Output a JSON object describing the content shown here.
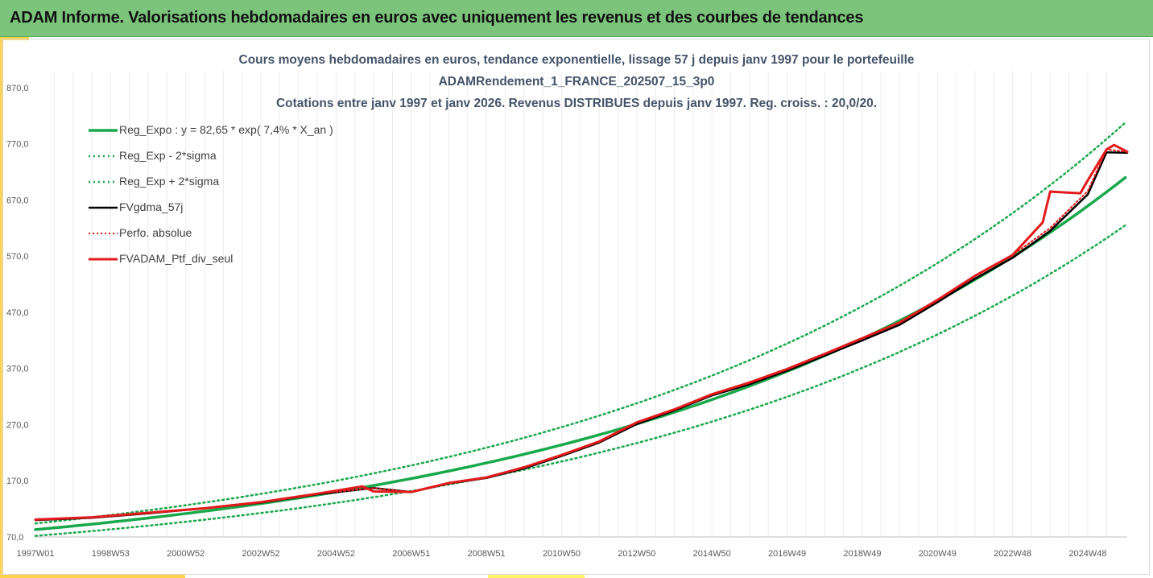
{
  "banner": {
    "title": "ADAM Informe. Valorisations hebdomadaires en euros avec uniquement les revenus et des courbes de tendances"
  },
  "colors": {
    "banner_bg": "#7cc47c",
    "accent": "#ffd24a",
    "reg_expo": "#19a84b",
    "sigma": "#19a84b",
    "fvgdma": "#000000",
    "perfo": "#e31a1c",
    "fvadam": "#e31a1c",
    "title_text": "#44546a"
  },
  "chart_data": {
    "type": "line",
    "title_lines": [
      "Cours moyens hebdomadaires  en euros, tendance exponentielle, lissage 57 j depuis janv 1997 pour le portefeuille",
      "ADAMRendement_1_FRANCE_202507_15_3p0",
      "Cotations entre janv 1997 et janv 2026. Revenus DISTRIBUES depuis janv 1997. Reg. croiss. : 20,0/20."
    ],
    "x_range": [
      1997.0,
      2026.05
    ],
    "ylim": [
      70,
      900
    ],
    "y_ticks": [
      "70,0",
      "170,0",
      "270,0",
      "370,0",
      "470,0",
      "570,0",
      "670,0",
      "770,0",
      "870,0"
    ],
    "y_tick_values": [
      70,
      170,
      270,
      370,
      470,
      570,
      670,
      770,
      870
    ],
    "x_ticks": [
      "1997W01",
      "1998W53",
      "2000W52",
      "2002W52",
      "2004W52",
      "2006W51",
      "2008W51",
      "2010W50",
      "2012W50",
      "2014W50",
      "2016W49",
      "2018W49",
      "2020W49",
      "2022W48",
      "2024W48"
    ],
    "x_tick_values": [
      1997.0,
      1999.0,
      2001.0,
      2003.0,
      2005.0,
      2007.0,
      2009.0,
      2011.0,
      2013.0,
      2015.0,
      2017.0,
      2019.0,
      2021.0,
      2023.0,
      2025.0
    ],
    "grid": "vertical",
    "legend_position": "top-left",
    "series": [
      {
        "name": "Reg_Expo : y = 82,65 * exp( 7,4% *  X_an )",
        "style": "solid",
        "color": "#19a84b",
        "x": [
          1997.0,
          2000.0,
          2003.0,
          2006.0,
          2009.0,
          2012.0,
          2015.0,
          2018.0,
          2021.0,
          2024.0,
          2026.0
        ],
        "y": [
          83,
          103,
          128,
          159,
          197,
          245,
          305,
          379,
          472,
          590,
          710
        ]
      },
      {
        "name": "Reg_Exp - 2*sigma",
        "style": "dotted",
        "color": "#19a84b",
        "x": [
          1997.0,
          2000.0,
          2003.0,
          2006.0,
          2009.0,
          2012.0,
          2015.0,
          2018.0,
          2021.0,
          2024.0,
          2026.0
        ],
        "y": [
          72,
          90,
          112,
          138,
          172,
          214,
          267,
          332,
          414,
          520,
          625
        ]
      },
      {
        "name": "Reg_Exp + 2*sigma",
        "style": "dotted",
        "color": "#19a84b",
        "x": [
          1997.0,
          2000.0,
          2003.0,
          2006.0,
          2009.0,
          2012.0,
          2015.0,
          2018.0,
          2021.0,
          2024.0,
          2026.0
        ],
        "y": [
          94,
          117,
          146,
          181,
          225,
          279,
          345,
          428,
          532,
          665,
          808
        ]
      },
      {
        "name": "FVgdma_57j",
        "style": "solid",
        "color": "#000000",
        "x": [
          1997.0,
          1998.5,
          2000.0,
          2001.5,
          2003.0,
          2004.5,
          2006.0,
          2007.0,
          2008.0,
          2009.0,
          2010.0,
          2011.0,
          2012.0,
          2013.0,
          2014.0,
          2015.0,
          2016.0,
          2017.0,
          2018.0,
          2019.0,
          2020.0,
          2021.0,
          2022.0,
          2023.0,
          2024.0,
          2025.0,
          2025.5,
          2026.05
        ],
        "y": [
          100,
          104,
          112,
          121,
          131,
          146,
          157,
          150,
          165,
          175,
          192,
          214,
          238,
          271,
          295,
          322,
          342,
          366,
          393,
          420,
          448,
          488,
          530,
          567,
          615,
          680,
          755,
          754
        ]
      },
      {
        "name": "Perfo. absolue",
        "style": "dotted",
        "color": "#e31a1c",
        "x": [
          1997.0,
          1998.5,
          2000.0,
          2001.5,
          2003.0,
          2004.5,
          2006.0,
          2007.0,
          2008.0,
          2009.0,
          2010.0,
          2011.0,
          2012.0,
          2013.0,
          2014.0,
          2015.0,
          2016.0,
          2017.0,
          2018.0,
          2019.0,
          2020.0,
          2021.0,
          2022.0,
          2023.0,
          2024.0,
          2025.0,
          2025.5,
          2026.05
        ],
        "y": [
          101,
          105,
          113,
          121,
          132,
          147,
          157,
          150,
          166,
          176,
          194,
          216,
          240,
          274,
          297,
          324,
          345,
          369,
          396,
          424,
          452,
          492,
          535,
          572,
          620,
          686,
          760,
          756
        ]
      },
      {
        "name": "FVADAM_Ptf_div_seul",
        "style": "solid",
        "color": "#e31a1c",
        "x": [
          1997.0,
          1998.5,
          2000.0,
          2001.5,
          2003.0,
          2004.5,
          2005.7,
          2006.0,
          2007.0,
          2008.0,
          2009.0,
          2010.0,
          2011.0,
          2012.0,
          2013.0,
          2014.0,
          2015.0,
          2016.0,
          2017.0,
          2018.0,
          2019.0,
          2020.0,
          2021.0,
          2022.0,
          2023.0,
          2023.8,
          2024.0,
          2024.8,
          2025.0,
          2025.5,
          2025.7,
          2026.05
        ],
        "y": [
          101,
          105,
          113,
          121,
          132,
          147,
          160,
          151,
          150,
          166,
          176,
          194,
          216,
          240,
          274,
          297,
          324,
          345,
          369,
          396,
          424,
          452,
          492,
          535,
          572,
          630,
          685,
          682,
          705,
          760,
          768,
          756
        ]
      }
    ]
  }
}
